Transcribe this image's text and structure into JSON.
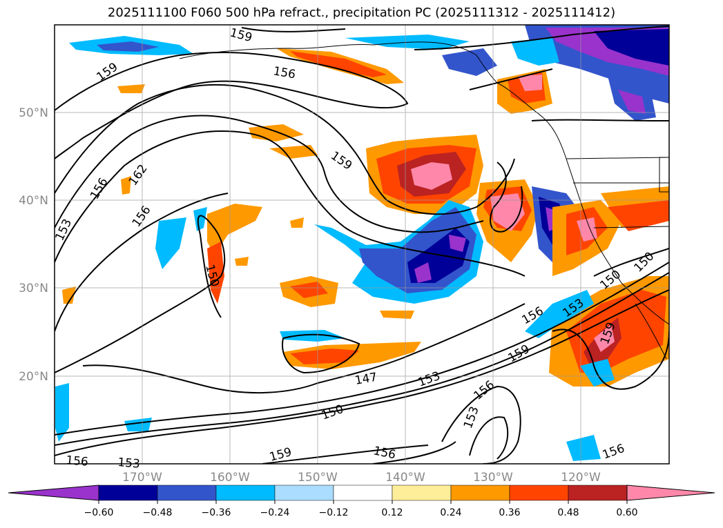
{
  "title": "2025111100 F060 500 hPa refract., precipitation PC (2025111312 - 2025111412)",
  "lat_labels": [
    "50°N",
    "40°N",
    "30°N",
    "20°N"
  ],
  "lon_labels": [
    "170°W",
    "160°W",
    "150°W",
    "140°W",
    "130°W",
    "120°W"
  ],
  "contour_labels": [
    "159",
    "156",
    "159",
    "162",
    "156",
    "156",
    "153",
    "150",
    "159",
    "147",
    "153",
    "156",
    "153",
    "150",
    "159",
    "156",
    "153",
    "156",
    "159",
    "156",
    "150",
    "150",
    "156",
    "159",
    "153"
  ],
  "colorbar": {
    "ticks": [
      "−0.60",
      "−0.48",
      "−0.36",
      "−0.24",
      "−0.12",
      "0.12",
      "0.24",
      "0.36",
      "0.48",
      "0.60"
    ],
    "colors": [
      "#9933cc",
      "#000099",
      "#3355cc",
      "#00bbff",
      "#aaddff",
      "#ffffff",
      "#ffee99",
      "#ff9900",
      "#ff4400",
      "#bb2222",
      "#ff88aa"
    ]
  }
}
